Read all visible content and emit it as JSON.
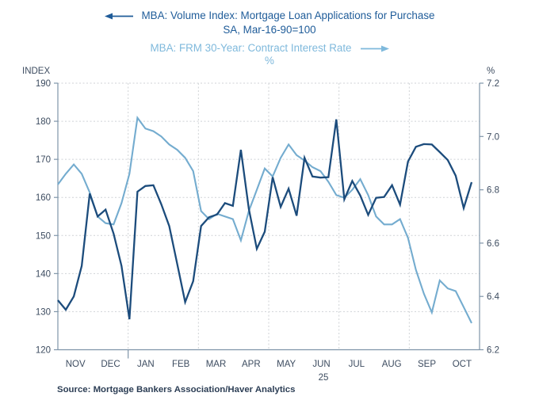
{
  "titles": {
    "series1_line1": "MBA: Volume Index: Mortgage Loan Applications for Purchase",
    "series1_line2": "SA, Mar-16-90=100",
    "series2_line1": "MBA: FRM 30-Year: Contract Interest Rate",
    "series2_unit": "%"
  },
  "source_line": "Source:  Mortgage Bankers Association/Haver Analytics",
  "colors": {
    "series1_line": "#1c4c7c",
    "series1_title": "#1f5c99",
    "series2_line": "#74accf",
    "series2_title": "#7fb9dc",
    "axis_text": "#3d4c60",
    "axis_frame": "#7f95a9",
    "gridline": "#cfd2d6",
    "source_text": "#2c3e55",
    "background": "#ffffff"
  },
  "chart_data": {
    "type": "line",
    "title": "MBA: Volume Index: Mortgage Loan Applications for Purchase (SA, Mar-16-90=100) vs MBA: FRM 30-Year: Contract Interest Rate (%)",
    "x_axis": {
      "months": [
        "NOV",
        "DEC",
        "JAN",
        "FEB",
        "MAR",
        "APR",
        "MAY",
        "JUN",
        "JUL",
        "AUG",
        "SEP",
        "OCT"
      ],
      "year_label": "25",
      "frequency": "weekly"
    },
    "left_axis": {
      "label": "INDEX",
      "min": 120,
      "max": 190,
      "step": 10,
      "ticks": [
        "190",
        "180",
        "170",
        "160",
        "150",
        "140",
        "130",
        "120"
      ]
    },
    "right_axis": {
      "label": "%",
      "min": 6.2,
      "max": 7.2,
      "step": 0.2,
      "ticks": [
        "7.2",
        "7.0",
        "6.8",
        "6.6",
        "6.4",
        "6.2"
      ]
    },
    "grid": {
      "horizontal": true,
      "vertical_every_two_months": true
    },
    "series": [
      {
        "name": "MBA: Volume Index: Mortgage Loan Applications for Purchase",
        "axis": "left",
        "color": "#1c4c7c",
        "values": [
          133,
          130.5,
          134,
          142,
          161,
          155,
          156.8,
          150.5,
          142,
          128,
          161.5,
          163,
          163.2,
          158.2,
          152.5,
          142.5,
          132.5,
          138,
          152.5,
          154.8,
          155.5,
          158.5,
          157.8,
          172.5,
          157,
          146.5,
          151,
          165.3,
          157.5,
          162.3,
          155.2,
          170.4,
          165.5,
          165.2,
          165.3,
          180.5,
          159.5,
          164.3,
          160.5,
          155.4,
          159.9,
          160.1,
          163.2,
          158.1,
          169.4,
          173.3,
          174,
          173.9,
          171.9,
          169.8,
          165.7,
          157.2,
          164
        ]
      },
      {
        "name": "MBA: FRM 30-Year: Contract Interest Rate",
        "axis": "right",
        "color": "#74accf",
        "values": [
          6.82,
          6.86,
          6.895,
          6.86,
          6.79,
          6.7,
          6.675,
          6.67,
          6.75,
          6.86,
          7.07,
          7.03,
          7.02,
          7.0,
          6.97,
          6.95,
          6.92,
          6.87,
          6.72,
          6.69,
          6.71,
          6.7,
          6.69,
          6.61,
          6.72,
          6.8,
          6.88,
          6.85,
          6.92,
          6.97,
          6.93,
          6.91,
          6.885,
          6.87,
          6.83,
          6.78,
          6.77,
          6.8,
          6.84,
          6.78,
          6.7,
          6.67,
          6.67,
          6.69,
          6.62,
          6.5,
          6.41,
          6.34,
          6.46,
          6.43,
          6.42,
          6.36,
          6.3
        ]
      }
    ]
  }
}
